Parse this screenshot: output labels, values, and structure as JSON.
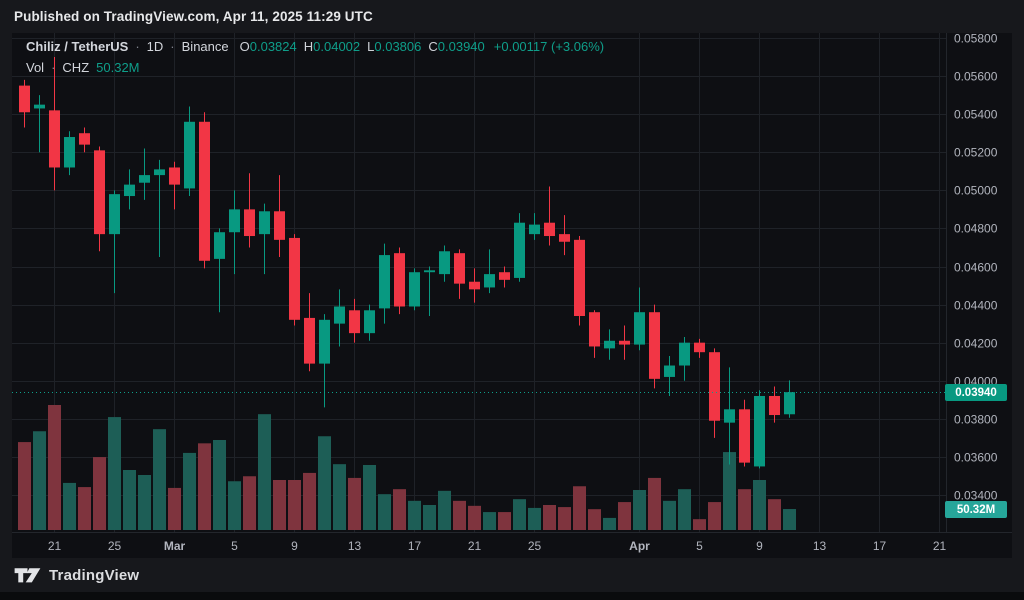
{
  "header": {
    "published_text": "Published on TradingView.com, Apr 11, 2025 11:29 UTC"
  },
  "legend": {
    "symbol": "Chiliz / TetherUS",
    "separator": "·",
    "interval": "1D",
    "exchange": "Binance",
    "ohlc": {
      "o_label": "O",
      "o": "0.03824",
      "h_label": "H",
      "h": "0.04002",
      "l_label": "L",
      "l": "0.03806",
      "c_label": "C",
      "c": "0.03940",
      "change": "+0.00117 (+3.06%)"
    },
    "volume_row": {
      "label": "Vol",
      "separator": "·",
      "unit": "CHZ",
      "value": "50.32M"
    }
  },
  "axis": {
    "price_badge": "0.03940",
    "volume_badge": "50.32M"
  },
  "footer": {
    "brand": "TradingView"
  },
  "colors": {
    "background": "#17181c",
    "chart_bg": "#0e0f13",
    "grid": "#1f2228",
    "axis_text": "#b2b5be",
    "up": "#089981",
    "down": "#f23645",
    "volume_up": "#1d5e56",
    "volume_down": "#7f343e",
    "dotted_line": "#0f9e8a",
    "badge_price_bg": "#089981",
    "badge_volume_bg": "#26a69a"
  },
  "chart_data": {
    "type": "candlestick",
    "title": "Chiliz / TetherUS · 1D · Binance",
    "legend_position": "top-left",
    "grid": true,
    "y_axis": {
      "min": 0.034,
      "max": 0.058,
      "tick_step": 0.002,
      "tick_labels": [
        "0.05800",
        "0.05600",
        "0.05400",
        "0.05200",
        "0.05000",
        "0.04800",
        "0.04600",
        "0.04400",
        "0.04200",
        "0.04000",
        "0.03800",
        "0.03600",
        "0.03400"
      ]
    },
    "x_ticks": [
      {
        "slot": 2,
        "label": "21"
      },
      {
        "slot": 6,
        "label": "25"
      },
      {
        "slot": 10,
        "label": "Mar"
      },
      {
        "slot": 14,
        "label": "5"
      },
      {
        "slot": 18,
        "label": "9"
      },
      {
        "slot": 22,
        "label": "13"
      },
      {
        "slot": 26,
        "label": "17"
      },
      {
        "slot": 30,
        "label": "21"
      },
      {
        "slot": 34,
        "label": "25"
      },
      {
        "slot": 41,
        "label": "Apr"
      },
      {
        "slot": 45,
        "label": "5"
      },
      {
        "slot": 49,
        "label": "9"
      },
      {
        "slot": 53,
        "label": "13"
      },
      {
        "slot": 57,
        "label": "17"
      },
      {
        "slot": 61,
        "label": "21"
      }
    ],
    "last_close": 0.0394,
    "last_volume_m": 50.32,
    "volume_unit": "M shares (CHZ)",
    "candles_format": [
      "date",
      "open",
      "high",
      "low",
      "close",
      "volume_m"
    ],
    "candles": [
      [
        "Feb 19",
        0.0555,
        0.0558,
        0.0533,
        0.0541,
        211
      ],
      [
        "Feb 20",
        0.0543,
        0.055,
        0.052,
        0.0545,
        237
      ],
      [
        "Feb 21",
        0.0542,
        0.057,
        0.05,
        0.0512,
        300
      ],
      [
        "Feb 22",
        0.0512,
        0.0531,
        0.0508,
        0.0528,
        113
      ],
      [
        "Feb 23",
        0.053,
        0.0533,
        0.052,
        0.0524,
        103
      ],
      [
        "Feb 24",
        0.0521,
        0.0523,
        0.0468,
        0.0477,
        175
      ],
      [
        "Feb 25",
        0.0477,
        0.05,
        0.0446,
        0.0498,
        271
      ],
      [
        "Feb 26",
        0.0497,
        0.0511,
        0.049,
        0.0503,
        144
      ],
      [
        "Feb 27",
        0.0504,
        0.0522,
        0.0495,
        0.0508,
        132
      ],
      [
        "Feb 28",
        0.0508,
        0.0516,
        0.0465,
        0.0511,
        242
      ],
      [
        "Mar 1",
        0.0512,
        0.0515,
        0.049,
        0.0503,
        101
      ],
      [
        "Mar 2",
        0.0501,
        0.0544,
        0.0497,
        0.0536,
        185
      ],
      [
        "Mar 3",
        0.0536,
        0.0541,
        0.0459,
        0.0463,
        208
      ],
      [
        "Mar 4",
        0.0464,
        0.048,
        0.0436,
        0.0478,
        216
      ],
      [
        "Mar 5",
        0.0478,
        0.05,
        0.0456,
        0.049,
        117
      ],
      [
        "Mar 6",
        0.049,
        0.0509,
        0.047,
        0.0476,
        129
      ],
      [
        "Mar 7",
        0.0477,
        0.0493,
        0.0456,
        0.0489,
        278
      ],
      [
        "Mar 8",
        0.0489,
        0.0508,
        0.0465,
        0.0474,
        120
      ],
      [
        "Mar 9",
        0.0475,
        0.0477,
        0.0429,
        0.0432,
        120
      ],
      [
        "Mar 10",
        0.0433,
        0.0446,
        0.0405,
        0.0409,
        137
      ],
      [
        "Mar 11",
        0.0409,
        0.0435,
        0.0386,
        0.0432,
        225
      ],
      [
        "Mar 12",
        0.043,
        0.0448,
        0.0418,
        0.0439,
        158
      ],
      [
        "Mar 13",
        0.0437,
        0.0443,
        0.042,
        0.0425,
        125
      ],
      [
        "Mar 14",
        0.0425,
        0.044,
        0.0421,
        0.0437,
        156
      ],
      [
        "Mar 15",
        0.0438,
        0.0472,
        0.043,
        0.0466,
        86
      ],
      [
        "Mar 16",
        0.0467,
        0.047,
        0.0435,
        0.0439,
        98
      ],
      [
        "Mar 17",
        0.0439,
        0.0459,
        0.0437,
        0.0457,
        70
      ],
      [
        "Mar 18",
        0.0457,
        0.046,
        0.0434,
        0.0458,
        60
      ],
      [
        "Mar 19",
        0.0456,
        0.0471,
        0.0452,
        0.0468,
        94
      ],
      [
        "Mar 20",
        0.0467,
        0.0469,
        0.0443,
        0.0451,
        70
      ],
      [
        "Mar 21",
        0.0452,
        0.0459,
        0.0441,
        0.0448,
        58
      ],
      [
        "Mar 22",
        0.0449,
        0.0469,
        0.0446,
        0.0456,
        43
      ],
      [
        "Mar 23",
        0.0457,
        0.046,
        0.0449,
        0.0453,
        43
      ],
      [
        "Mar 24",
        0.0454,
        0.0488,
        0.0452,
        0.0483,
        74
      ],
      [
        "Mar 25",
        0.0477,
        0.0488,
        0.0474,
        0.0482,
        53
      ],
      [
        "Mar 26",
        0.0483,
        0.0502,
        0.0471,
        0.0476,
        60
      ],
      [
        "Mar 27",
        0.0477,
        0.0487,
        0.0466,
        0.0473,
        55
      ],
      [
        "Mar 28",
        0.0474,
        0.0476,
        0.0429,
        0.0434,
        105
      ],
      [
        "Mar 29",
        0.0436,
        0.0437,
        0.0412,
        0.0418,
        50
      ],
      [
        "Mar 30",
        0.0417,
        0.0427,
        0.0411,
        0.0421,
        29
      ],
      [
        "Mar 31",
        0.0421,
        0.0429,
        0.0411,
        0.0419,
        67
      ],
      [
        "Apr 1",
        0.0419,
        0.0449,
        0.0416,
        0.0436,
        96
      ],
      [
        "Apr 2",
        0.0436,
        0.044,
        0.0396,
        0.0401,
        125
      ],
      [
        "Apr 3",
        0.0402,
        0.0413,
        0.0392,
        0.0408,
        70
      ],
      [
        "Apr 4",
        0.0408,
        0.0423,
        0.04,
        0.042,
        98
      ],
      [
        "Apr 5",
        0.042,
        0.0422,
        0.0412,
        0.0415,
        26
      ],
      [
        "Apr 6",
        0.0415,
        0.0417,
        0.037,
        0.0379,
        67
      ],
      [
        "Apr 7",
        0.0378,
        0.0407,
        0.0356,
        0.0385,
        187
      ],
      [
        "Apr 8",
        0.0385,
        0.039,
        0.0355,
        0.0357,
        98
      ],
      [
        "Apr 9",
        0.0355,
        0.0395,
        0.0354,
        0.0392,
        120
      ],
      [
        "Apr 10",
        0.0392,
        0.0397,
        0.0378,
        0.0382,
        74
      ],
      [
        "Apr 11",
        0.03824,
        0.04002,
        0.03806,
        0.0394,
        50.32
      ]
    ]
  }
}
